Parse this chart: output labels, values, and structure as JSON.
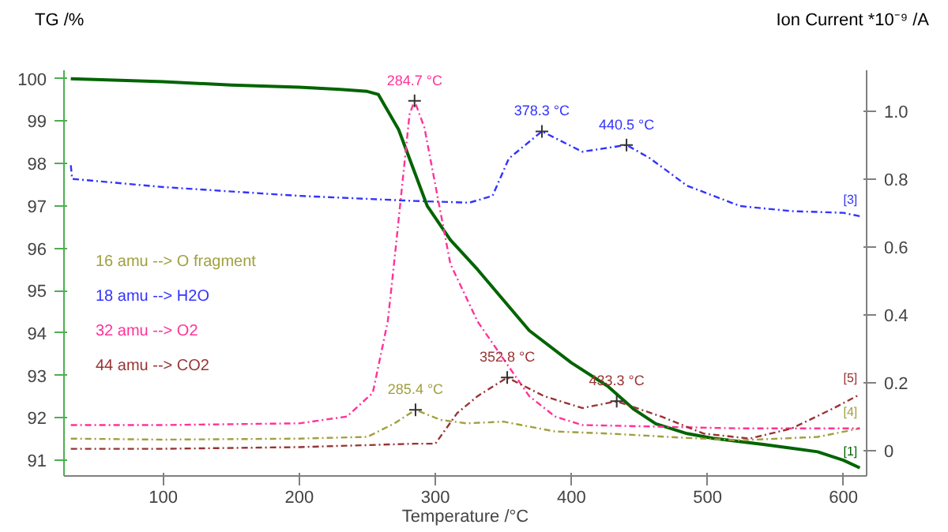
{
  "chart_data": {
    "type": "line",
    "ylabel": "TG /%",
    "y2label": "Ion Current *10⁻⁹ /A",
    "xlabel": "Temperature /°C",
    "xlim": [
      27,
      617
    ],
    "xticks": [
      100,
      200,
      300,
      400,
      500,
      600
    ],
    "ylim": [
      90.63,
      100.2
    ],
    "yticks": [
      91,
      92,
      93,
      94,
      95,
      96,
      97,
      98,
      99,
      100
    ],
    "y2lim": [
      -0.075,
      1.12
    ],
    "y2ticks": [
      0,
      0.2,
      0.4,
      0.6,
      0.8,
      {
        "value": 1,
        "label": "1.0"
      }
    ],
    "grid": false,
    "legend": "left",
    "line_style": "dashdot",
    "series": [
      {
        "color": "#006400",
        "line_style": "solid",
        "x": [
          32,
          100,
          150,
          200,
          230,
          250,
          258,
          273,
          294,
          311,
          331,
          369,
          400,
          427,
          446,
          462,
          485,
          504,
          542,
          581,
          600,
          612
        ],
        "values": [
          100.0,
          99.93,
          99.85,
          99.8,
          99.75,
          99.7,
          99.63,
          98.8,
          97.0,
          96.2,
          95.5,
          94.06,
          93.3,
          92.74,
          92.2,
          91.86,
          91.63,
          91.52,
          91.37,
          91.2,
          91.0,
          90.82
        ]
      },
      {
        "name": "16 amu --> O fragment",
        "color": "#a0a040",
        "axis": "y2",
        "x": [
          32,
          100,
          200,
          250,
          270,
          285.4,
          304,
          323,
          350,
          388,
          427,
          485,
          524,
          581,
          612
        ],
        "values": [
          0.035,
          0.032,
          0.035,
          0.04,
          0.08,
          0.12,
          0.09,
          0.08,
          0.085,
          0.056,
          0.05,
          0.037,
          0.03,
          0.04,
          0.065
        ]
      },
      {
        "name": "18 amu --> H2O",
        "color": "#3333ff",
        "axis": "y2",
        "x": [
          32,
          33,
          100,
          200,
          285,
          325,
          342,
          354,
          378.3,
          408,
          440.5,
          458,
          485,
          524,
          562,
          600,
          612
        ],
        "values": [
          0.84,
          0.8,
          0.776,
          0.75,
          0.735,
          0.73,
          0.75,
          0.86,
          0.94,
          0.88,
          0.9,
          0.86,
          0.78,
          0.72,
          0.705,
          0.7,
          0.69
        ]
      },
      {
        "name": "32 amu --> O2",
        "color": "#ff3399",
        "axis": "y2",
        "x": [
          32,
          100,
          200,
          235,
          254,
          265,
          270,
          281,
          284.7,
          292,
          311,
          331,
          350,
          369,
          388,
          408,
          524,
          600,
          612
        ],
        "values": [
          0.075,
          0.075,
          0.08,
          0.1,
          0.17,
          0.38,
          0.565,
          0.99,
          1.03,
          0.95,
          0.55,
          0.38,
          0.27,
          0.16,
          0.1,
          0.075,
          0.065,
          0.065,
          0.065
        ]
      },
      {
        "name": "44 amu --> CO2",
        "color": "#993333",
        "axis": "y2",
        "x": [
          32,
          100,
          200,
          285,
          300,
          316,
          331,
          352.8,
          380,
          408,
          433.3,
          466,
          497,
          531,
          562,
          593,
          612
        ],
        "values": [
          0.005,
          0.005,
          0.01,
          0.02,
          0.02,
          0.11,
          0.16,
          0.215,
          0.16,
          0.125,
          0.145,
          0.1,
          0.05,
          0.035,
          0.065,
          0.125,
          0.165
        ]
      },
      {
        "type": "scatter",
        "marker": "cross",
        "color": "#333333",
        "axis": "y2",
        "x": [
          284.7,
          378.3,
          440.5,
          285.4,
          352.8,
          433.3
        ],
        "values": [
          1.03,
          0.94,
          0.9,
          0.12,
          0.215,
          0.145
        ]
      }
    ],
    "annotations": [
      "284.7 °C",
      "378.3 °C",
      "440.5 °C",
      "285.4 °C",
      "352.8 °C",
      "433.3 °C",
      {
        "text": "[1]",
        "x": 612,
        "y": 90.82
      },
      "[3]",
      "[4]",
      "[5]"
    ]
  }
}
